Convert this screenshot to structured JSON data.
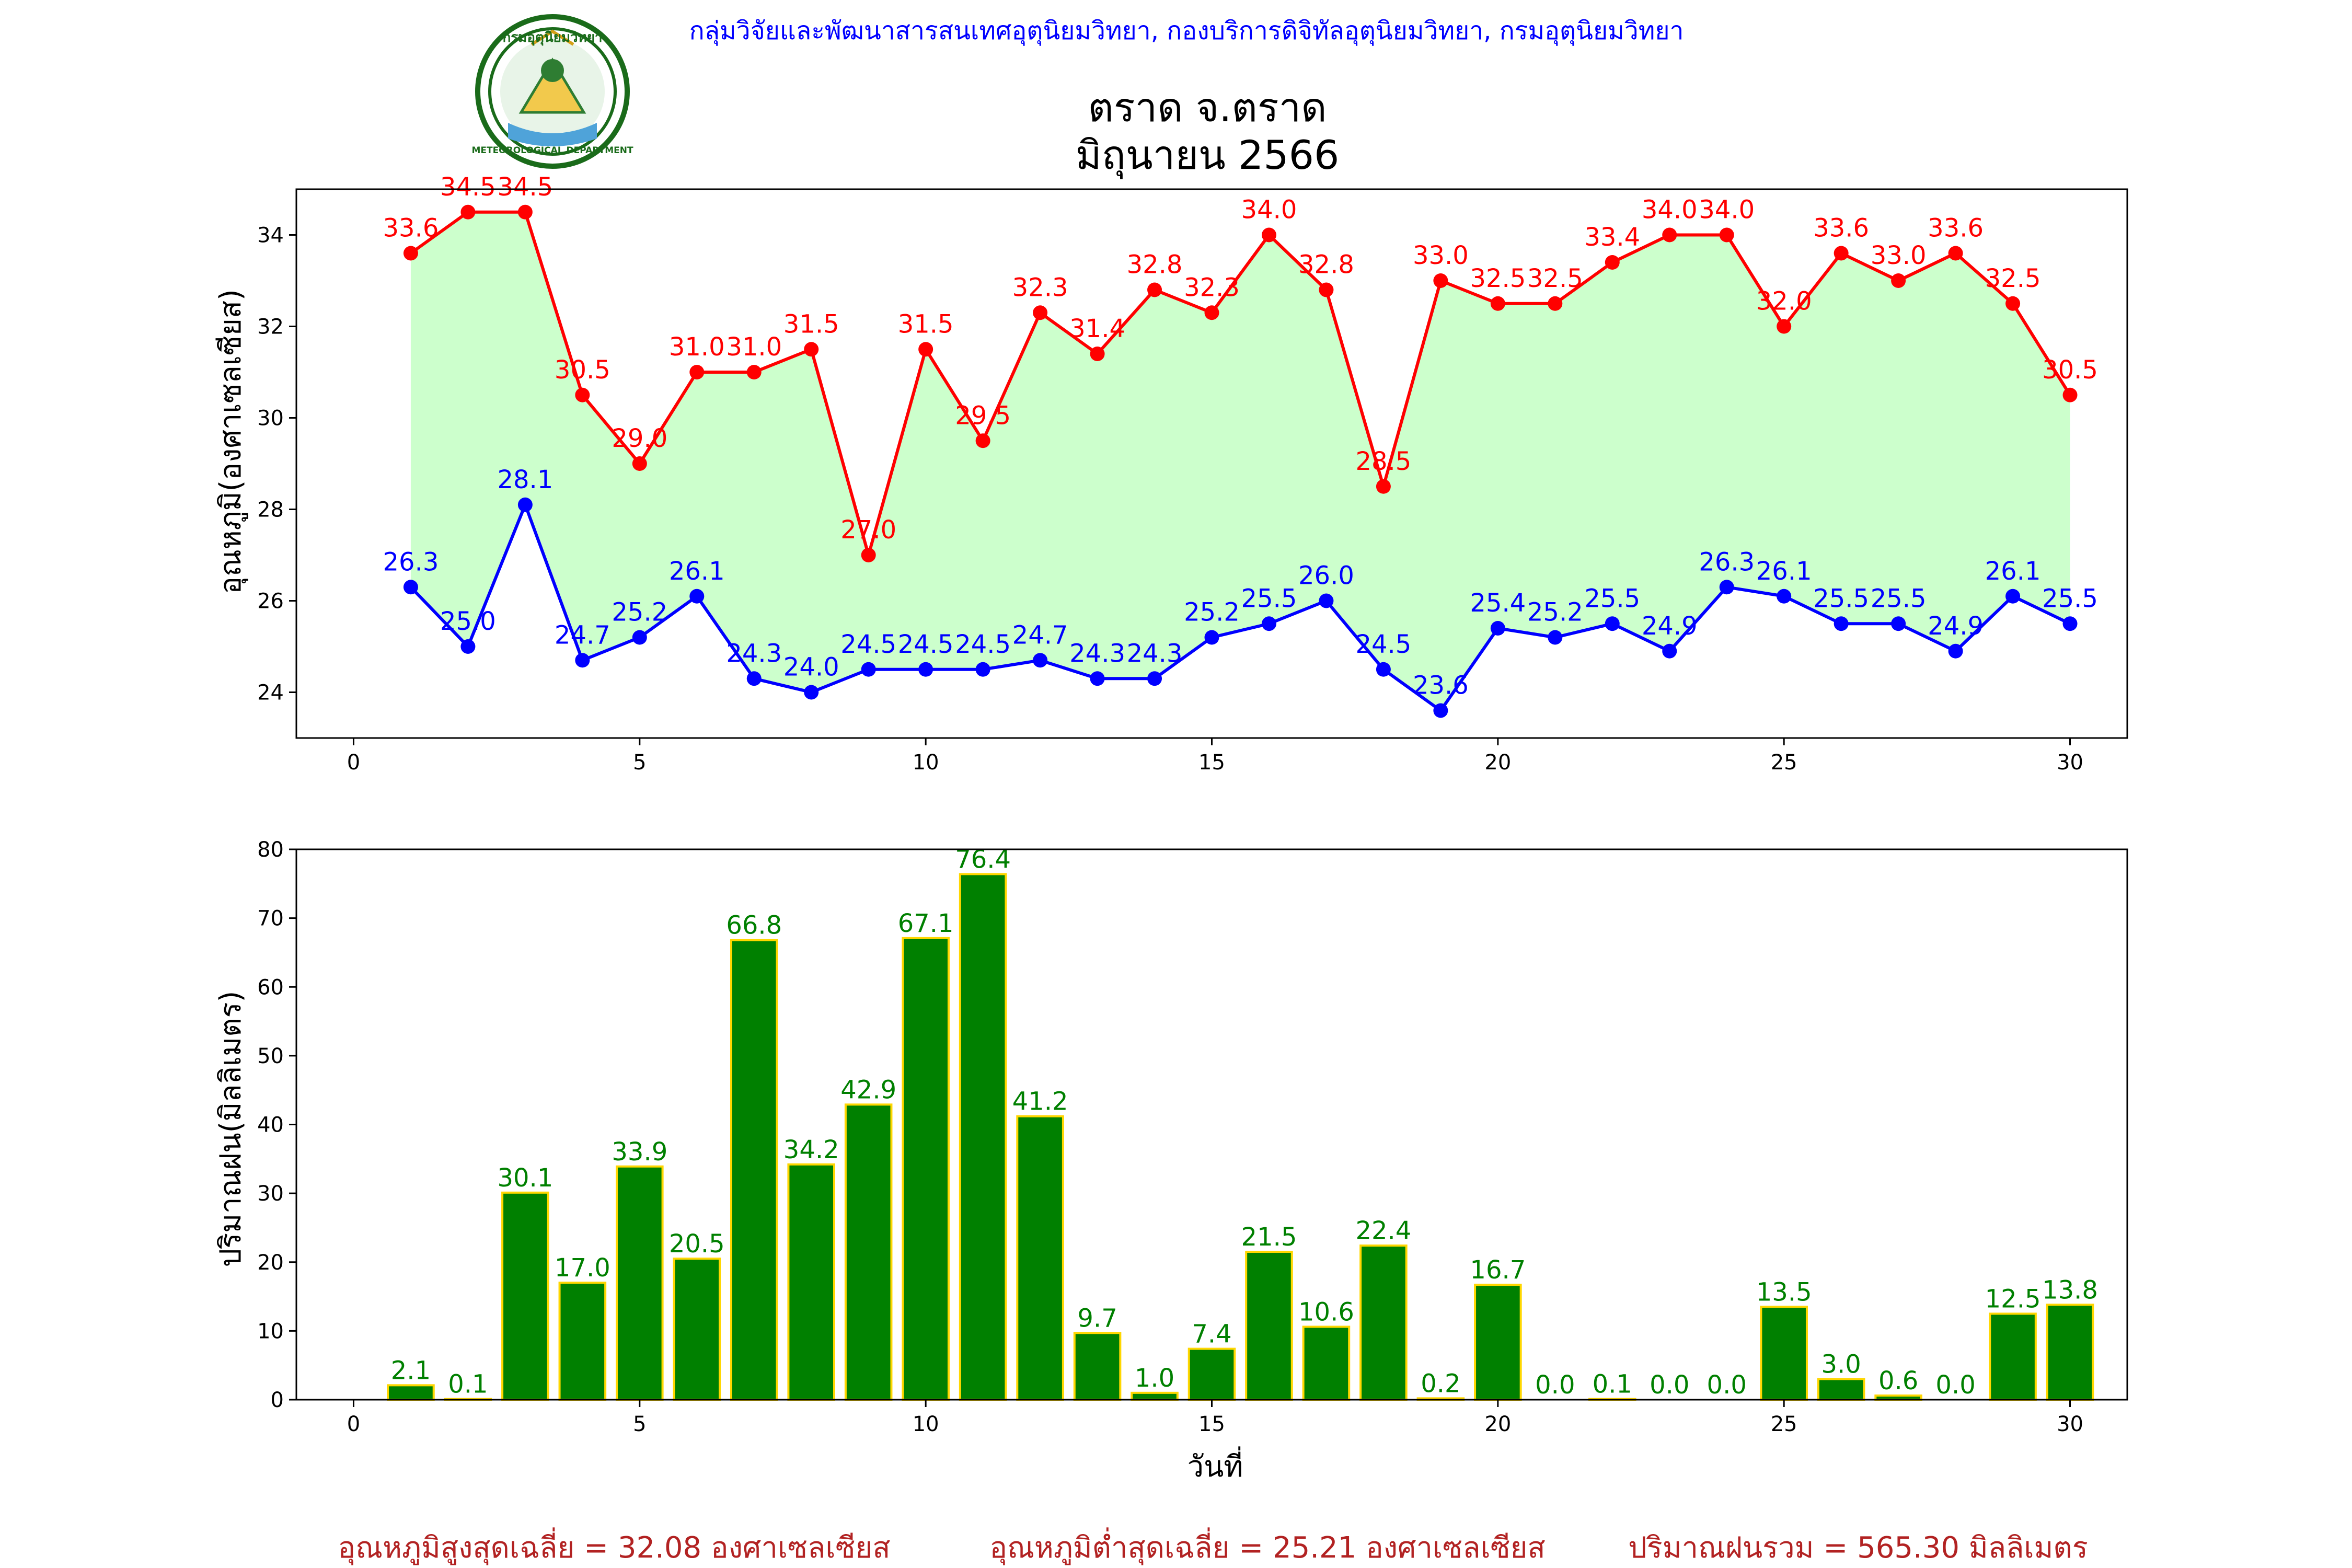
{
  "header": {
    "org_line": "กลุ่มวิจัยและพัฒนาสารสนเทศอุตุนิยมวิทยา, กองบริการดิจิทัลอุตุนิยมวิทยา, กรมอุตุนิยมวิทยา",
    "title_line1": "ตราด จ.ตราด",
    "title_line2": "มิถุนายน 2566",
    "logo_text_top": "กรมอุตุนิยมวิทยา",
    "logo_text_bottom": "METEOROLOGICAL DEPARTMENT"
  },
  "colors": {
    "max_temp": "#ff0000",
    "min_temp": "#0000ff",
    "fill": "#ccffcc",
    "rain_bar": "#008000",
    "rain_edge": "#ffd700",
    "header_text": "#0000ff",
    "summary_text": "#b22222"
  },
  "chart_data": [
    {
      "type": "line",
      "ylabel": "อุณหภูมิ(องศาเซลเซียส)",
      "xlabel": "",
      "xlim": [
        -1,
        31
      ],
      "ylim": [
        23.0,
        35.0
      ],
      "x_ticks": [
        0,
        5,
        10,
        15,
        20,
        25,
        30
      ],
      "y_ticks": [
        24,
        26,
        28,
        30,
        32,
        34
      ],
      "fill_between": true,
      "x": [
        1,
        2,
        3,
        4,
        5,
        6,
        7,
        8,
        9,
        10,
        11,
        12,
        13,
        14,
        15,
        16,
        17,
        18,
        19,
        20,
        21,
        22,
        23,
        24,
        25,
        26,
        27,
        28,
        29,
        30
      ],
      "series": [
        {
          "values": [
            33.6,
            34.5,
            34.5,
            30.5,
            29.0,
            31.0,
            31.0,
            31.5,
            27.0,
            31.5,
            29.5,
            32.3,
            31.4,
            32.8,
            32.3,
            34.0,
            32.8,
            28.5,
            33.0,
            32.5,
            32.5,
            33.4,
            34.0,
            34.0,
            32.0,
            33.6,
            33.0,
            33.6,
            32.5,
            30.5
          ]
        },
        {
          "values": [
            26.3,
            25.0,
            28.1,
            24.7,
            25.2,
            26.1,
            24.3,
            24.0,
            24.5,
            24.5,
            24.5,
            24.7,
            24.3,
            24.3,
            25.2,
            25.5,
            26.0,
            24.5,
            23.6,
            25.4,
            25.2,
            25.5,
            24.9,
            26.3,
            26.1,
            25.5,
            25.5,
            24.9,
            26.1,
            25.5
          ]
        }
      ]
    },
    {
      "type": "bar",
      "ylabel": "ปริมาณฝน(มิลลิเมตร)",
      "xlabel": "วันที่",
      "xlim": [
        -1,
        31
      ],
      "ylim": [
        0,
        80
      ],
      "x_ticks": [
        0,
        5,
        10,
        15,
        20,
        25,
        30
      ],
      "y_ticks": [
        0,
        10,
        20,
        30,
        40,
        50,
        60,
        70,
        80
      ],
      "x": [
        1,
        2,
        3,
        4,
        5,
        6,
        7,
        8,
        9,
        10,
        11,
        12,
        13,
        14,
        15,
        16,
        17,
        18,
        19,
        20,
        21,
        22,
        23,
        24,
        25,
        26,
        27,
        28,
        29,
        30
      ],
      "values": [
        2.1,
        0.1,
        30.1,
        17.0,
        33.9,
        20.5,
        66.8,
        34.2,
        42.9,
        67.1,
        76.4,
        41.2,
        9.7,
        1.0,
        7.4,
        21.5,
        10.6,
        22.4,
        0.2,
        16.7,
        0.0,
        0.1,
        0.0,
        0.0,
        13.5,
        3.0,
        0.6,
        0.0,
        12.5,
        13.8
      ]
    }
  ],
  "summary": {
    "avg_max": "อุณหภูมิสูงสุดเฉลี่ย = 32.08 องศาเซลเซียส",
    "avg_min": "อุณหภูมิต่ำสุดเฉลี่ย = 25.21 องศาเซลเซียส",
    "total_rain": "ปริมาณฝนรวม = 565.30 มิลลิเมตร"
  }
}
